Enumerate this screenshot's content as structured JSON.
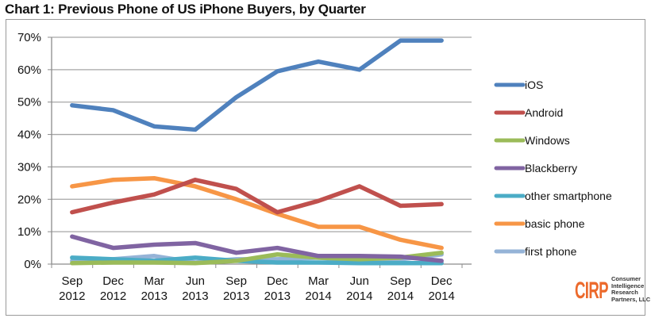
{
  "chart_data": {
    "type": "line",
    "title": "Chart 1: Previous Phone of US iPhone Buyers, by Quarter",
    "xlabel": "",
    "ylabel": "",
    "ylim": [
      0,
      70
    ],
    "yticks": [
      0,
      10,
      20,
      30,
      40,
      50,
      60,
      70
    ],
    "ytick_labels": [
      "0%",
      "10%",
      "20%",
      "30%",
      "40%",
      "50%",
      "60%",
      "70%"
    ],
    "grid": true,
    "legend_position": "right",
    "categories": [
      [
        "Sep",
        "2012"
      ],
      [
        "Dec",
        "2012"
      ],
      [
        "Mar",
        "2013"
      ],
      [
        "Jun",
        "2013"
      ],
      [
        "Sep",
        "2013"
      ],
      [
        "Dec",
        "2013"
      ],
      [
        "Mar",
        "2014"
      ],
      [
        "Jun",
        "2014"
      ],
      [
        "Sep",
        "2014"
      ],
      [
        "Dec",
        "2014"
      ]
    ],
    "series": [
      {
        "name": "iOS",
        "color": "#4f81bd",
        "values": [
          49,
          47.5,
          42.5,
          41.5,
          51.5,
          59.5,
          62.5,
          60,
          69,
          69
        ]
      },
      {
        "name": "Android",
        "color": "#c0504d",
        "values": [
          16,
          19,
          21.5,
          26,
          23.2,
          16,
          19.5,
          24,
          18,
          18.5
        ]
      },
      {
        "name": "Windows",
        "color": "#9bbb59",
        "values": [
          0.3,
          0.5,
          0.5,
          0.3,
          1,
          3,
          2,
          1.5,
          2,
          3.5
        ]
      },
      {
        "name": "Blackberry",
        "color": "#8064a2",
        "values": [
          8.5,
          5,
          6,
          6.5,
          3.5,
          5,
          2.5,
          2.5,
          2.3,
          1
        ]
      },
      {
        "name": "other smartphone",
        "color": "#4bacc6",
        "values": [
          2,
          1.5,
          1,
          2,
          1,
          0.5,
          0.5,
          0.3,
          0.3,
          0.3
        ]
      },
      {
        "name": "basic phone",
        "color": "#f79646",
        "values": [
          24,
          26,
          26.5,
          24,
          20,
          15.5,
          11.5,
          11.5,
          7.5,
          5
        ]
      },
      {
        "name": "first phone",
        "color": "#95b3d7",
        "values": [
          1,
          1.5,
          2.5,
          0.5,
          1.5,
          1.5,
          2,
          1,
          1.5,
          3
        ]
      }
    ]
  },
  "logo": {
    "mark": "CIRP",
    "lines": [
      "Consumer",
      "Intelligence",
      "Research",
      "Partners, LLC"
    ]
  }
}
